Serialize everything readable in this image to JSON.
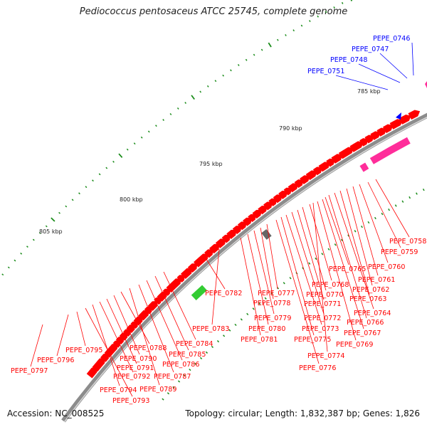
{
  "title": "Pediococcus pentosaceus ATCC 25745, complete genome",
  "footer": {
    "accession": "Accession: NC_008525",
    "summary": "Topology: circular; Length: 1,832,387 bp; Genes: 1,826"
  },
  "colors": {
    "forward_gene": "#ff0000",
    "highlight_gene": "#ff2d9a",
    "rna_gene": "#33cc33",
    "other_feature": "#666666",
    "reverse_gene": "#0000ff",
    "backbone": "#8c8c8c",
    "tick": "#1a8c1a"
  },
  "scale_labels": [
    {
      "text": "785 kbp",
      "kbp": 785
    },
    {
      "text": "790 kbp",
      "kbp": 790
    },
    {
      "text": "795 kbp",
      "kbp": 795
    },
    {
      "text": "800 kbp",
      "kbp": 800
    },
    {
      "text": "805 kbp",
      "kbp": 805
    }
  ],
  "labels_blue": [
    "PEPE_0746",
    "PEPE_0747",
    "PEPE_0748",
    "PEPE_0751"
  ],
  "labels_red": [
    "PEPE_0758",
    "PEPE_0759",
    "PEPE_0760",
    "PEPE_0761",
    "PEPE_0762",
    "PEPE_0763",
    "PEPE_0764",
    "PEPE_0765",
    "PEPE_0766",
    "PEPE_0767",
    "PEPE_0768",
    "PEPE_0769",
    "PEPE_0770",
    "PEPE_0771",
    "PEPE_0772",
    "PEPE_0773",
    "PEPE_0774",
    "PEPE_0775",
    "PEPE_0776",
    "PEPE_0777",
    "PEPE_0778",
    "PEPE_0779",
    "PEPE_0780",
    "PEPE_0781",
    "PEPE_0782",
    "PEPE_0783",
    "PEPE_0784",
    "PEPE_0785",
    "PEPE_0786",
    "PEPE_0787",
    "PEPE_0788",
    "PEPE_0789",
    "PEPE_0790",
    "PEPE_0791",
    "PEPE_0792",
    "PEPE_0793",
    "PEPE_0794",
    "PEPE_0795",
    "PEPE_0796",
    "PEPE_0797"
  ]
}
